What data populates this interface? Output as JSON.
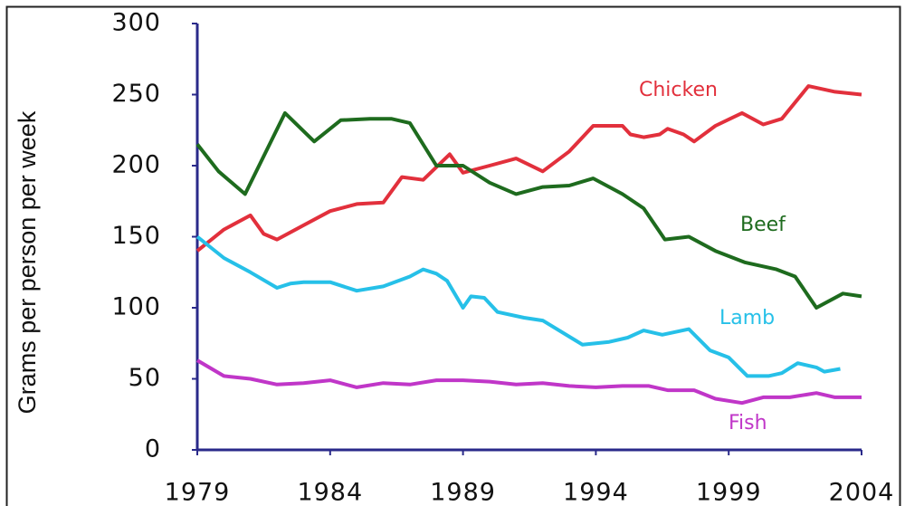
{
  "chart_data": {
    "type": "line",
    "y_label": "Grams per person per week",
    "xlim": [
      1979,
      2004
    ],
    "xticks": [
      1979,
      1984,
      1989,
      1994,
      1999,
      2004
    ],
    "ylim": [
      0,
      300
    ],
    "yticks": [
      0,
      50,
      100,
      150,
      200,
      250,
      300
    ],
    "grid": false,
    "series": [
      {
        "name": "Chicken",
        "color": "#e2303c",
        "x": [
          1979,
          1980,
          1981,
          1981.5,
          1982,
          1983,
          1984,
          1985,
          1986,
          1986.7,
          1987.5,
          1988.5,
          1989,
          1990,
          1991,
          1992,
          1993,
          1993.9,
          1995,
          1995.3,
          1995.8,
          1996.4,
          1996.7,
          1997.3,
          1997.7,
          1998.5,
          1999.5,
          2000.3,
          2001,
          2002,
          2003,
          2004
        ],
        "values": [
          140,
          155,
          165,
          152,
          148,
          158,
          168,
          173,
          174,
          192,
          190,
          208,
          195,
          200,
          205,
          196,
          210,
          228,
          228,
          222,
          220,
          222,
          226,
          222,
          217,
          228,
          237,
          229,
          233,
          256,
          252,
          250
        ]
      },
      {
        "name": "Beef",
        "color": "#1e6b1e",
        "x": [
          1979,
          1979.8,
          1980.8,
          1982.3,
          1983.4,
          1984.4,
          1985.5,
          1986.3,
          1987,
          1988,
          1989,
          1990,
          1991,
          1992,
          1993,
          1993.9,
          1995,
          1995.8,
          1996.6,
          1997.5,
          1998.5,
          1999.6,
          2000.8,
          2001.5,
          2002.3,
          2003.3,
          2004
        ],
        "values": [
          215,
          196,
          180,
          237,
          217,
          232,
          233,
          233,
          230,
          200,
          200,
          188,
          180,
          185,
          186,
          191,
          180,
          170,
          148,
          150,
          140,
          132,
          127,
          122,
          100,
          110,
          108
        ]
      },
      {
        "name": "Lamb",
        "color": "#26c0e8",
        "x": [
          1979,
          1980,
          1981,
          1982,
          1982.5,
          1983,
          1984,
          1985,
          1986,
          1987,
          1987.5,
          1988,
          1988.4,
          1989,
          1989.3,
          1989.8,
          1990.3,
          1991.3,
          1992,
          1993.5,
          1994.5,
          1995.2,
          1995.8,
          1996.5,
          1997.5,
          1998.3,
          1999,
          1999.7,
          2000.5,
          2001,
          2001.6,
          2002.3,
          2002.6,
          2003.2
        ],
        "values": [
          150,
          135,
          125,
          114,
          117,
          118,
          118,
          112,
          115,
          122,
          127,
          124,
          119,
          100,
          108,
          107,
          97,
          93,
          91,
          74,
          76,
          79,
          84,
          81,
          85,
          70,
          65,
          52,
          52,
          54,
          61,
          58,
          55,
          57
        ]
      },
      {
        "name": "Fish",
        "color": "#c036c8",
        "x": [
          1979,
          1980,
          1981,
          1982,
          1983,
          1984,
          1985,
          1986,
          1987,
          1988,
          1989,
          1990,
          1991,
          1992,
          1993,
          1994,
          1995,
          1996,
          1996.7,
          1997.7,
          1998.5,
          1999.5,
          2000.3,
          2001.3,
          2002.3,
          2003,
          2004
        ],
        "values": [
          63,
          52,
          50,
          46,
          47,
          49,
          44,
          47,
          46,
          49,
          49,
          48,
          46,
          47,
          45,
          44,
          45,
          45,
          42,
          42,
          36,
          33,
          37,
          37,
          40,
          37,
          37
        ]
      }
    ]
  }
}
